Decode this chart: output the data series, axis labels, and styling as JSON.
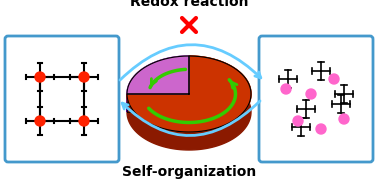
{
  "title_top": "Redox reaction",
  "title_bottom": "Self-organization",
  "pie_sizes": [
    75,
    25
  ],
  "pie_colors": [
    "#CC3300",
    "#CC66CC"
  ],
  "pie_edge_colors": [
    "#8B0000",
    "#6600AA"
  ],
  "arrow_color_top": "#66CCFF",
  "arrow_color_bottom": "#66CCFF",
  "green_arrow_color": "#33CC00",
  "cross_color": "#FF0000",
  "box_border_color": "#4499CC",
  "background_color": "#FFFFFF",
  "node_color": "#FF2200",
  "dot_color": "#FF66CC",
  "figsize": [
    3.78,
    1.87
  ],
  "dpi": 100
}
